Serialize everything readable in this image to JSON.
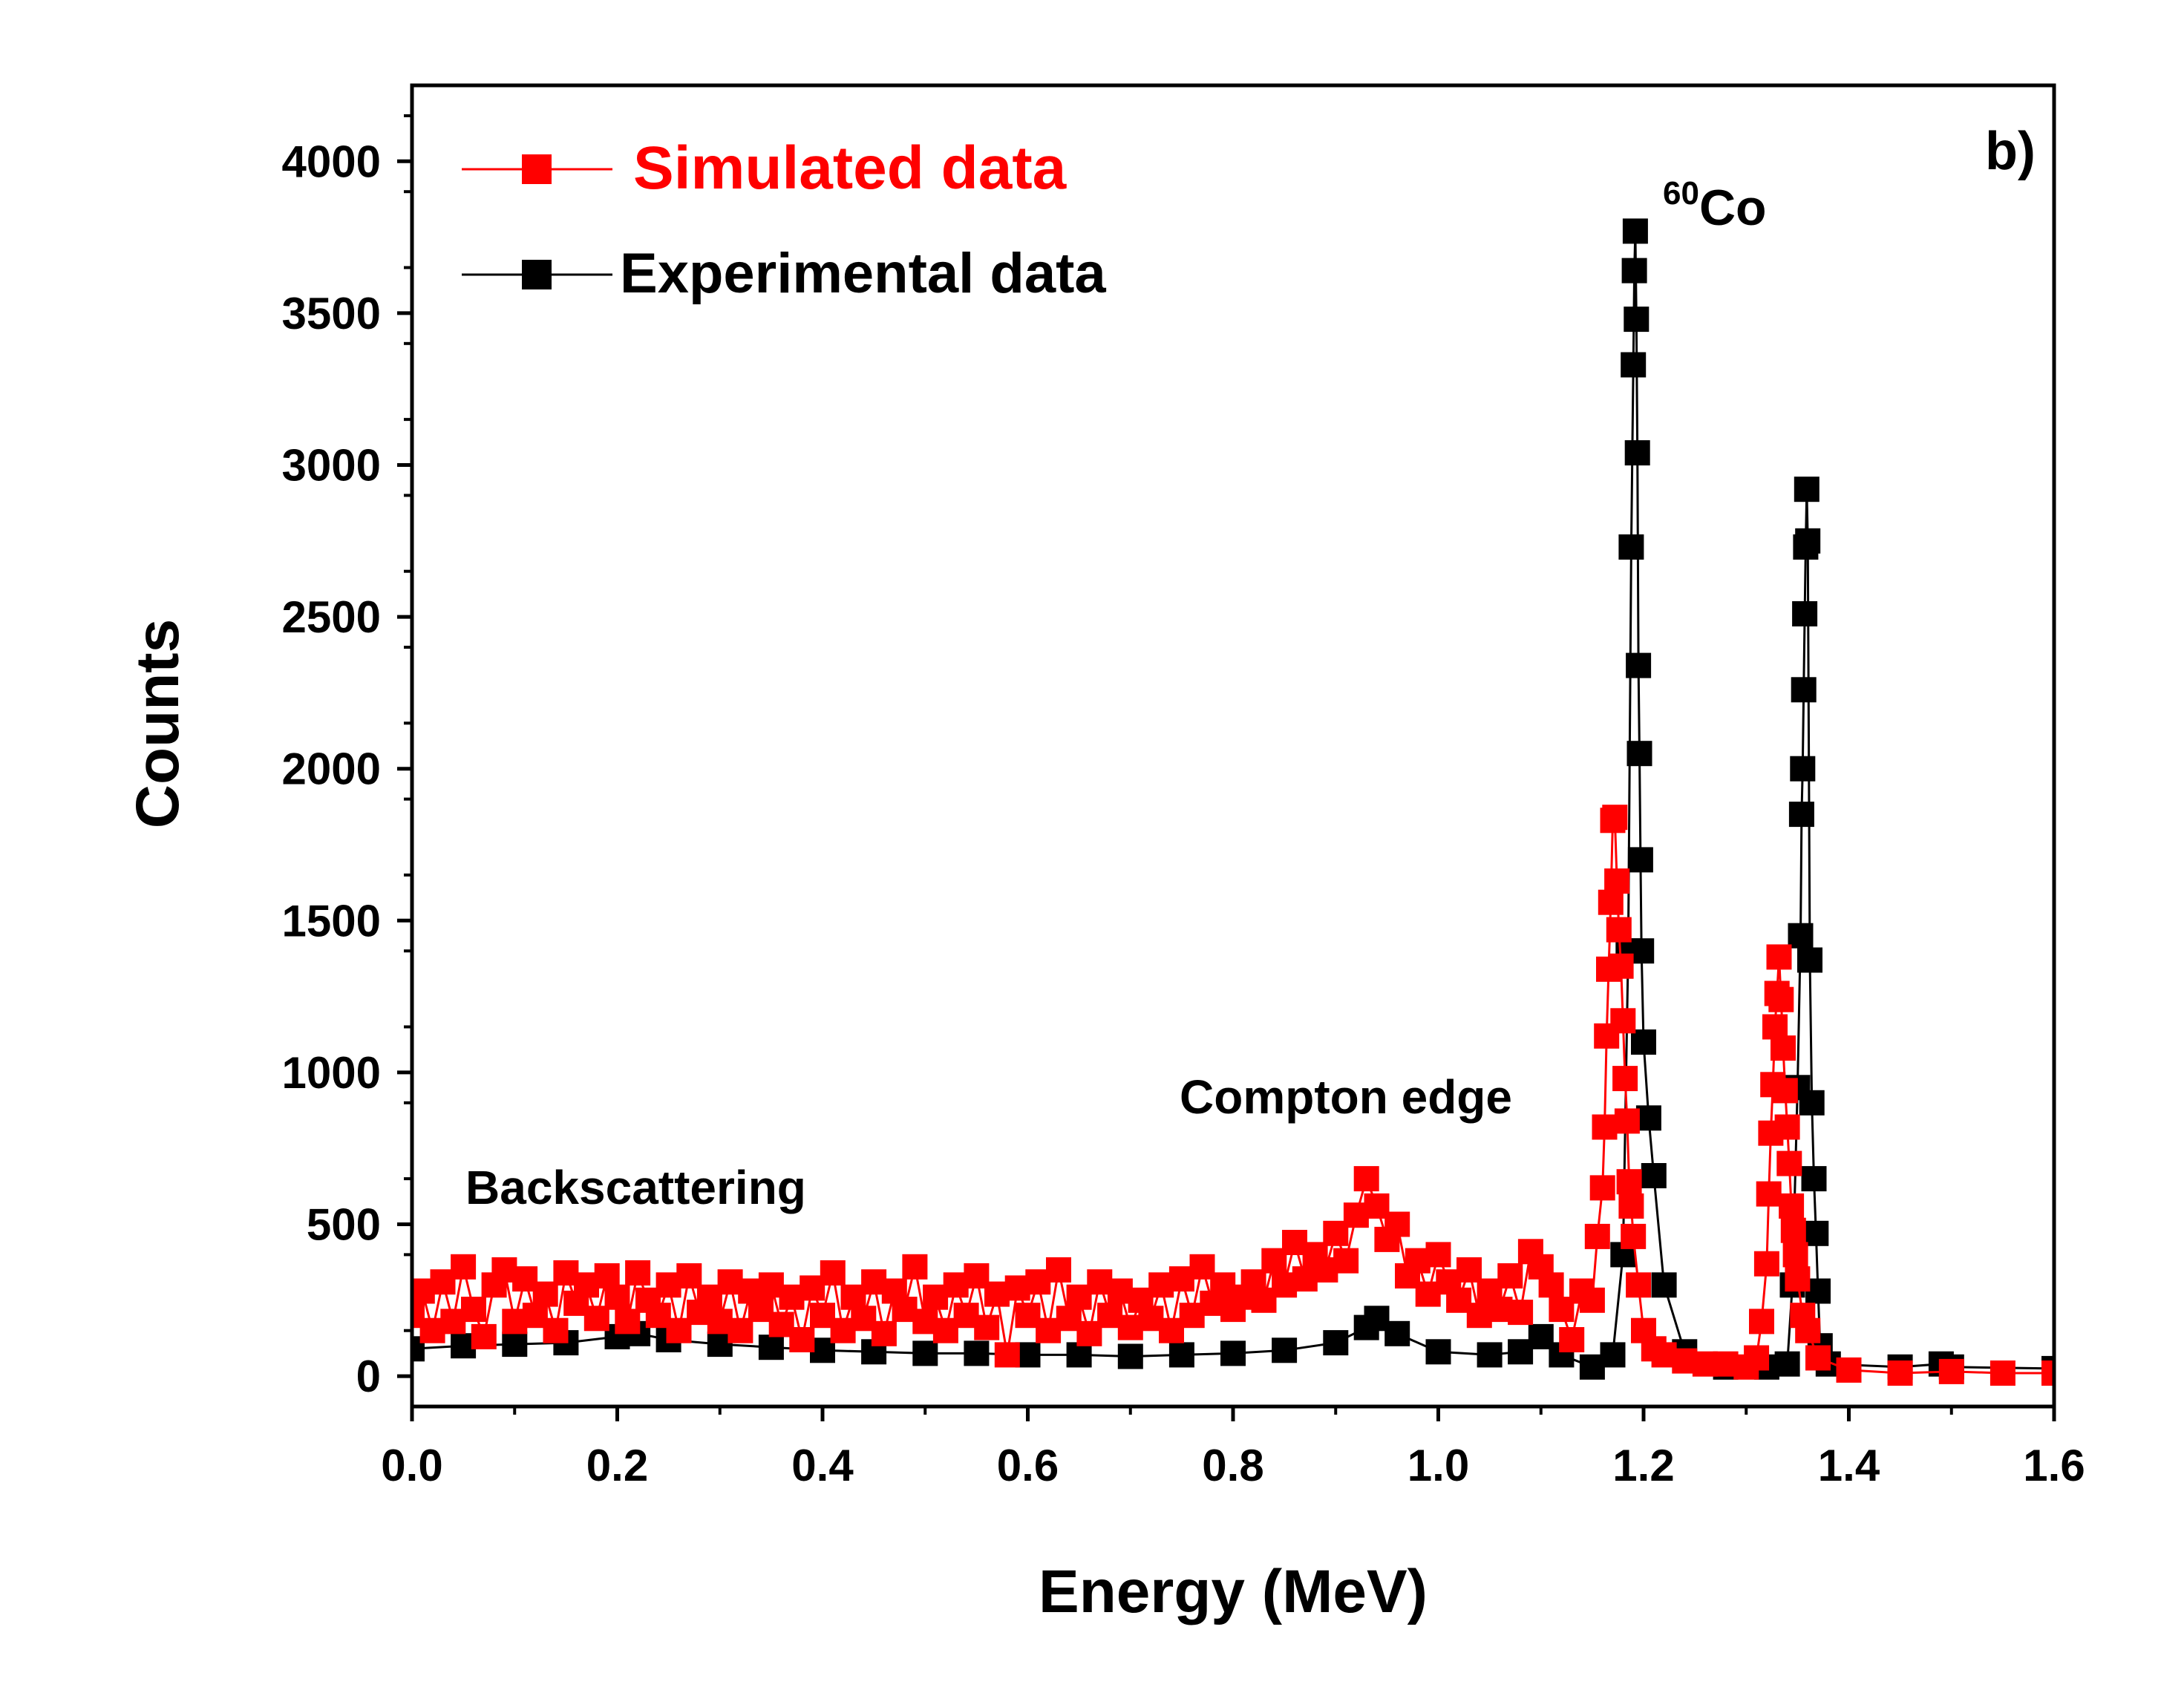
{
  "chart_data": {
    "type": "scatter",
    "panel_label": "b)",
    "xlabel": "Energy (MeV)",
    "ylabel": "Counts",
    "xlim": [
      0.0,
      1.6
    ],
    "ylim": [
      -100,
      4250
    ],
    "x_ticks": [
      0.0,
      0.2,
      0.4,
      0.6,
      0.8,
      1.0,
      1.2,
      1.4,
      1.6
    ],
    "x_tick_labels": [
      "0.0",
      "0.2",
      "0.4",
      "0.6",
      "0.8",
      "1.0",
      "1.2",
      "1.4",
      "1.6"
    ],
    "y_ticks": [
      0,
      500,
      1000,
      1500,
      2000,
      2500,
      3000,
      3500,
      4000
    ],
    "y_tick_labels": [
      "0",
      "500",
      "1000",
      "1500",
      "2000",
      "2500",
      "3000",
      "3500",
      "4000"
    ],
    "grid": false,
    "legend": {
      "position": "top-left",
      "entries": [
        {
          "label": "Simulated data",
          "color": "#ff0000",
          "marker": "square"
        },
        {
          "label": "Experimental data",
          "color": "#000000",
          "marker": "square"
        }
      ]
    },
    "annotations": {
      "isotope_mass": "60",
      "isotope_symbol": "Co",
      "compton": "Compton edge",
      "backscatter": "Backscattering"
    },
    "series": [
      {
        "name": "Experimental data",
        "color": "#000000",
        "points": [
          [
            0.0,
            90
          ],
          [
            0.05,
            100
          ],
          [
            0.1,
            105
          ],
          [
            0.15,
            110
          ],
          [
            0.2,
            130
          ],
          [
            0.22,
            140
          ],
          [
            0.25,
            120
          ],
          [
            0.3,
            105
          ],
          [
            0.35,
            95
          ],
          [
            0.4,
            85
          ],
          [
            0.45,
            80
          ],
          [
            0.5,
            75
          ],
          [
            0.55,
            75
          ],
          [
            0.6,
            70
          ],
          [
            0.65,
            70
          ],
          [
            0.7,
            65
          ],
          [
            0.75,
            70
          ],
          [
            0.8,
            75
          ],
          [
            0.85,
            85
          ],
          [
            0.9,
            110
          ],
          [
            0.93,
            160
          ],
          [
            0.94,
            190
          ],
          [
            0.96,
            140
          ],
          [
            1.0,
            80
          ],
          [
            1.05,
            70
          ],
          [
            1.08,
            80
          ],
          [
            1.1,
            130
          ],
          [
            1.12,
            70
          ],
          [
            1.15,
            30
          ],
          [
            1.17,
            70
          ],
          [
            1.18,
            400
          ],
          [
            1.185,
            1400
          ],
          [
            1.188,
            2730
          ],
          [
            1.19,
            3330
          ],
          [
            1.191,
            3640
          ],
          [
            1.192,
            3770
          ],
          [
            1.193,
            3480
          ],
          [
            1.194,
            3040
          ],
          [
            1.195,
            2340
          ],
          [
            1.196,
            2050
          ],
          [
            1.197,
            1700
          ],
          [
            1.198,
            1400
          ],
          [
            1.2,
            1100
          ],
          [
            1.205,
            850
          ],
          [
            1.21,
            660
          ],
          [
            1.22,
            300
          ],
          [
            1.24,
            80
          ],
          [
            1.28,
            30
          ],
          [
            1.32,
            30
          ],
          [
            1.34,
            40
          ],
          [
            1.345,
            300
          ],
          [
            1.35,
            950
          ],
          [
            1.353,
            1450
          ],
          [
            1.354,
            1850
          ],
          [
            1.355,
            2000
          ],
          [
            1.356,
            2260
          ],
          [
            1.357,
            2510
          ],
          [
            1.358,
            2730
          ],
          [
            1.359,
            2920
          ],
          [
            1.36,
            2750
          ],
          [
            1.362,
            1370
          ],
          [
            1.364,
            900
          ],
          [
            1.366,
            650
          ],
          [
            1.368,
            470
          ],
          [
            1.37,
            280
          ],
          [
            1.372,
            100
          ],
          [
            1.38,
            40
          ],
          [
            1.45,
            30
          ],
          [
            1.49,
            40
          ],
          [
            1.5,
            30
          ],
          [
            1.6,
            25
          ]
        ]
      },
      {
        "name": "Simulated data",
        "color": "#ff0000",
        "points": [
          [
            0.0,
            200
          ],
          [
            0.01,
            280
          ],
          [
            0.02,
            150
          ],
          [
            0.03,
            310
          ],
          [
            0.04,
            180
          ],
          [
            0.05,
            360
          ],
          [
            0.06,
            220
          ],
          [
            0.07,
            130
          ],
          [
            0.08,
            300
          ],
          [
            0.09,
            350
          ],
          [
            0.1,
            180
          ],
          [
            0.11,
            320
          ],
          [
            0.12,
            200
          ],
          [
            0.13,
            270
          ],
          [
            0.14,
            150
          ],
          [
            0.15,
            340
          ],
          [
            0.16,
            240
          ],
          [
            0.17,
            300
          ],
          [
            0.18,
            190
          ],
          [
            0.19,
            330
          ],
          [
            0.2,
            260
          ],
          [
            0.21,
            180
          ],
          [
            0.22,
            340
          ],
          [
            0.23,
            250
          ],
          [
            0.24,
            200
          ],
          [
            0.25,
            300
          ],
          [
            0.26,
            150
          ],
          [
            0.27,
            330
          ],
          [
            0.28,
            210
          ],
          [
            0.29,
            260
          ],
          [
            0.3,
            180
          ],
          [
            0.31,
            310
          ],
          [
            0.32,
            150
          ],
          [
            0.33,
            280
          ],
          [
            0.34,
            220
          ],
          [
            0.35,
            300
          ],
          [
            0.36,
            170
          ],
          [
            0.37,
            260
          ],
          [
            0.38,
            120
          ],
          [
            0.39,
            290
          ],
          [
            0.4,
            200
          ],
          [
            0.41,
            340
          ],
          [
            0.42,
            150
          ],
          [
            0.43,
            260
          ],
          [
            0.44,
            190
          ],
          [
            0.45,
            310
          ],
          [
            0.46,
            140
          ],
          [
            0.47,
            280
          ],
          [
            0.48,
            220
          ],
          [
            0.49,
            360
          ],
          [
            0.5,
            180
          ],
          [
            0.51,
            260
          ],
          [
            0.52,
            150
          ],
          [
            0.53,
            300
          ],
          [
            0.54,
            200
          ],
          [
            0.55,
            330
          ],
          [
            0.56,
            160
          ],
          [
            0.57,
            270
          ],
          [
            0.58,
            70
          ],
          [
            0.59,
            290
          ],
          [
            0.6,
            200
          ],
          [
            0.61,
            310
          ],
          [
            0.62,
            150
          ],
          [
            0.63,
            350
          ],
          [
            0.64,
            190
          ],
          [
            0.65,
            260
          ],
          [
            0.66,
            140
          ],
          [
            0.67,
            310
          ],
          [
            0.68,
            200
          ],
          [
            0.69,
            280
          ],
          [
            0.7,
            160
          ],
          [
            0.71,
            250
          ],
          [
            0.72,
            190
          ],
          [
            0.73,
            300
          ],
          [
            0.74,
            150
          ],
          [
            0.75,
            320
          ],
          [
            0.76,
            200
          ],
          [
            0.77,
            360
          ],
          [
            0.78,
            240
          ],
          [
            0.79,
            300
          ],
          [
            0.8,
            220
          ],
          [
            0.81,
            260
          ],
          [
            0.82,
            310
          ],
          [
            0.83,
            250
          ],
          [
            0.84,
            380
          ],
          [
            0.85,
            300
          ],
          [
            0.86,
            440
          ],
          [
            0.87,
            320
          ],
          [
            0.88,
            400
          ],
          [
            0.89,
            350
          ],
          [
            0.9,
            470
          ],
          [
            0.91,
            380
          ],
          [
            0.92,
            530
          ],
          [
            0.93,
            650
          ],
          [
            0.94,
            560
          ],
          [
            0.95,
            450
          ],
          [
            0.96,
            500
          ],
          [
            0.97,
            330
          ],
          [
            0.98,
            380
          ],
          [
            0.99,
            270
          ],
          [
            1.0,
            400
          ],
          [
            1.01,
            310
          ],
          [
            1.02,
            250
          ],
          [
            1.03,
            350
          ],
          [
            1.04,
            200
          ],
          [
            1.05,
            280
          ],
          [
            1.06,
            220
          ],
          [
            1.07,
            330
          ],
          [
            1.08,
            210
          ],
          [
            1.09,
            410
          ],
          [
            1.1,
            360
          ],
          [
            1.11,
            300
          ],
          [
            1.12,
            220
          ],
          [
            1.13,
            120
          ],
          [
            1.14,
            280
          ],
          [
            1.15,
            250
          ],
          [
            1.155,
            460
          ],
          [
            1.16,
            620
          ],
          [
            1.162,
            820
          ],
          [
            1.164,
            1120
          ],
          [
            1.166,
            1340
          ],
          [
            1.168,
            1560
          ],
          [
            1.17,
            1830
          ],
          [
            1.172,
            1840
          ],
          [
            1.174,
            1630
          ],
          [
            1.176,
            1470
          ],
          [
            1.178,
            1350
          ],
          [
            1.18,
            1170
          ],
          [
            1.182,
            980
          ],
          [
            1.184,
            840
          ],
          [
            1.186,
            640
          ],
          [
            1.188,
            560
          ],
          [
            1.19,
            460
          ],
          [
            1.195,
            300
          ],
          [
            1.2,
            150
          ],
          [
            1.21,
            90
          ],
          [
            1.22,
            70
          ],
          [
            1.24,
            50
          ],
          [
            1.26,
            40
          ],
          [
            1.28,
            40
          ],
          [
            1.3,
            30
          ],
          [
            1.31,
            60
          ],
          [
            1.315,
            180
          ],
          [
            1.32,
            370
          ],
          [
            1.322,
            600
          ],
          [
            1.324,
            800
          ],
          [
            1.326,
            960
          ],
          [
            1.328,
            1150
          ],
          [
            1.33,
            1260
          ],
          [
            1.332,
            1380
          ],
          [
            1.334,
            1240
          ],
          [
            1.336,
            1080
          ],
          [
            1.338,
            940
          ],
          [
            1.34,
            820
          ],
          [
            1.342,
            700
          ],
          [
            1.344,
            560
          ],
          [
            1.346,
            480
          ],
          [
            1.348,
            400
          ],
          [
            1.35,
            320
          ],
          [
            1.355,
            200
          ],
          [
            1.36,
            150
          ],
          [
            1.37,
            60
          ],
          [
            1.4,
            20
          ],
          [
            1.45,
            10
          ],
          [
            1.5,
            15
          ],
          [
            1.55,
            10
          ],
          [
            1.6,
            10
          ]
        ]
      }
    ]
  }
}
